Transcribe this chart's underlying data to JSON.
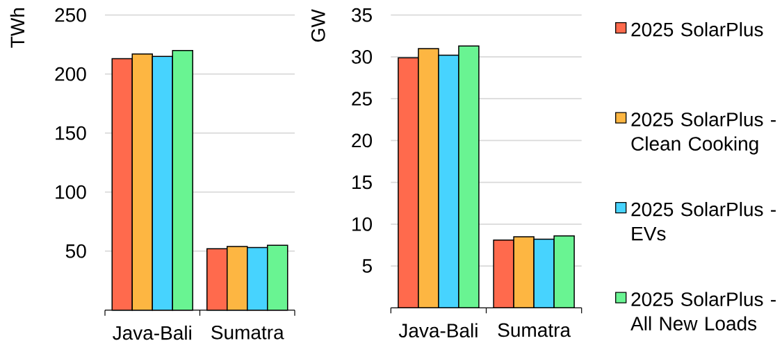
{
  "chart_data": [
    {
      "type": "bar",
      "categories": [
        "Java-Bali",
        "Sumatra"
      ],
      "ylabel": "TWh",
      "ylim": [
        0,
        250
      ],
      "yticks": [
        50,
        100,
        150,
        200,
        250
      ],
      "grid": "y",
      "series": [
        {
          "color": "#FF6A4D",
          "values": [
            213,
            52
          ]
        },
        {
          "color": "#FDB642",
          "values": [
            217,
            54
          ]
        },
        {
          "color": "#47D3FE",
          "values": [
            215,
            53
          ]
        },
        {
          "color": "#69F492",
          "values": [
            220,
            55
          ]
        }
      ]
    },
    {
      "type": "bar",
      "categories": [
        "Java-Bali",
        "Sumatra"
      ],
      "ylabel": "GW",
      "ylim": [
        0,
        35
      ],
      "yticks": [
        5,
        10,
        15,
        20,
        25,
        30,
        35
      ],
      "grid": "y",
      "legend": "right",
      "series": [
        {
          "name": "2025 SolarPlus",
          "color": "#FF6A4D",
          "values": [
            29.9,
            8.1
          ]
        },
        {
          "name": "2025 SolarPlus - Clean Cooking",
          "color": "#FDB642",
          "values": [
            31.0,
            8.5
          ]
        },
        {
          "name": "2025 SolarPlus - EVs",
          "color": "#47D3FE",
          "values": [
            30.2,
            8.2
          ]
        },
        {
          "name": "2025 SolarPlus - All New Loads",
          "color": "#69F492",
          "values": [
            31.3,
            8.6
          ]
        }
      ]
    }
  ]
}
